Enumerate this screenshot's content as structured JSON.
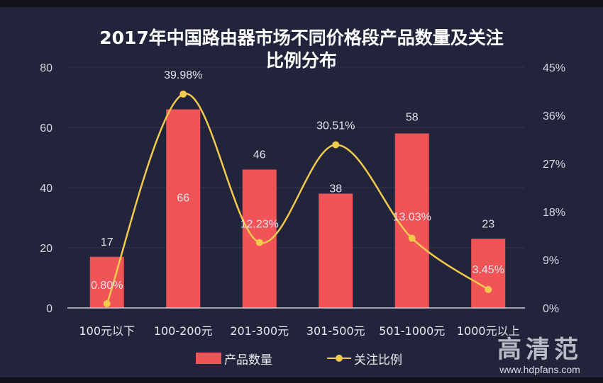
{
  "title": {
    "line1": "2017年中国路由器市场不同价格段产品数量及关注",
    "line2": "比例分布"
  },
  "axes": {
    "left_ticks": [
      "0",
      "20",
      "40",
      "60",
      "80"
    ],
    "right_ticks": [
      "0%",
      "9%",
      "18%",
      "27%",
      "36%",
      "45%"
    ]
  },
  "legend": {
    "bar_label": "产品数量",
    "line_label": "关注比例"
  },
  "watermark": {
    "brand": "高清范",
    "url": "www.hdpfans.com"
  },
  "colors": {
    "background": "#22243c",
    "bar": "#f05456",
    "line": "#f2c94c",
    "text": "#e2e3ec"
  },
  "chart_data": {
    "type": "bar",
    "title": "2017年中国路由器市场不同价格段产品数量及关注比例分布",
    "categories": [
      "100元以下",
      "100-200元",
      "201-300元",
      "301-500元",
      "501-1000元",
      "1000元以上"
    ],
    "series": [
      {
        "name": "产品数量",
        "type": "bar",
        "axis": "left",
        "values": [
          17,
          66,
          46,
          38,
          58,
          23
        ],
        "labels": [
          "17",
          "66",
          "46",
          "38",
          "58",
          "23"
        ]
      },
      {
        "name": "关注比例",
        "type": "line",
        "axis": "right",
        "smooth": true,
        "values": [
          0.8,
          39.98,
          12.23,
          30.51,
          13.03,
          3.45
        ],
        "labels": [
          "0.80%",
          "39.98%",
          "12.23%",
          "30.51%",
          "13.03%",
          "3.45%"
        ]
      }
    ],
    "xlabel": "",
    "ylabel": "",
    "ylim": [
      0,
      80
    ],
    "y2lim": [
      0,
      45
    ],
    "yticks": [
      0,
      20,
      40,
      60,
      80
    ],
    "y2ticks": [
      "0%",
      "9%",
      "18%",
      "27%",
      "36%",
      "45%"
    ],
    "grid": true,
    "legend_position": "bottom"
  }
}
